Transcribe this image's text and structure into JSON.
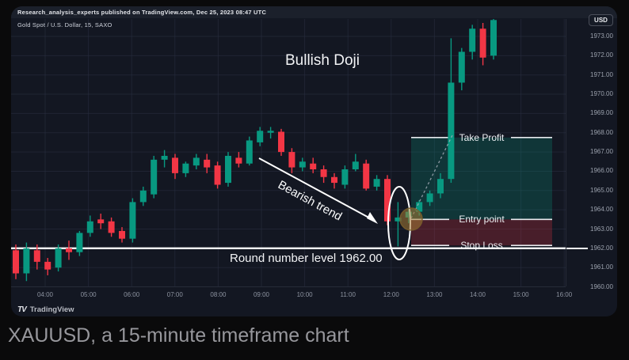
{
  "page": {
    "caption": "XAUUSD, a 15-minute timeframe chart"
  },
  "header": {
    "attribution": "Research_analysis_experts published on TradingView.com, Dec 25, 2023 08:47 UTC",
    "symbol_title": "Gold Spot / U.S. Dollar, 15, SAXO",
    "currency_button": "USD"
  },
  "footer": {
    "logo": "TV",
    "brand": "TradingView"
  },
  "annotations": {
    "bullish_doji": "Bullish Doji",
    "bearish_trend": "Bearish trend",
    "round_number": "Round number level 1962.00",
    "take_profit": "Take Profit",
    "entry_point": "Entry point",
    "stop_loss": "Stop Loss"
  },
  "colors": {
    "up_candle": "#089981",
    "down_candle": "#f23645",
    "tp_zone_fill": "rgba(8,153,129,0.24)",
    "sl_zone_fill": "rgba(242,54,69,0.24)",
    "zone_line": "#e8eaee",
    "round_line": "#ffffff",
    "grid": "rgba(42,48,66,0.55)",
    "chart_bg": "#131722",
    "arrow": "#ffffff",
    "dashed_projection": "rgba(170,176,188,0.8)",
    "entry_marker_fill": "rgba(168,124,52,0.55)",
    "entry_marker_stroke": "rgba(120,92,42,0.9)"
  },
  "chart_data": {
    "type": "candlestick",
    "symbol": "XAUUSD",
    "timeframe_minutes": 15,
    "title": "Gold Spot / U.S. Dollar, 15, SAXO",
    "price_axis_ticks": [
      "1973.00",
      "1972.00",
      "1971.00",
      "1970.00",
      "1969.00",
      "1968.00",
      "1967.00",
      "1966.00",
      "1965.00",
      "1964.00",
      "1963.00",
      "1962.00",
      "1961.00",
      "1960.00"
    ],
    "time_axis_ticks": [
      "04:00",
      "05:00",
      "06:00",
      "07:00",
      "08:00",
      "09:00",
      "10:00",
      "11:00",
      "12:00",
      "13:00",
      "14:00",
      "15:00",
      "16:00"
    ],
    "ylim": [
      1960.0,
      1973.9
    ],
    "grid": true,
    "round_number_level": 1962.0,
    "position_tool": {
      "entry": 1963.5,
      "take_profit": 1967.75,
      "stop_loss": 1962.15
    },
    "bullish_doji_index": 36,
    "candles_ohlc": [
      [
        1961.9,
        1962.2,
        1960.4,
        1960.7
      ],
      [
        1960.7,
        1962.3,
        1960.3,
        1962.0
      ],
      [
        1961.9,
        1962.2,
        1960.9,
        1961.3
      ],
      [
        1961.3,
        1961.5,
        1960.6,
        1960.9
      ],
      [
        1961.0,
        1962.2,
        1960.8,
        1962.0
      ],
      [
        1962.0,
        1962.4,
        1961.4,
        1961.8
      ],
      [
        1961.8,
        1962.9,
        1961.6,
        1962.8
      ],
      [
        1962.8,
        1963.7,
        1962.6,
        1963.4
      ],
      [
        1963.5,
        1963.8,
        1963.0,
        1963.3
      ],
      [
        1963.4,
        1963.6,
        1962.6,
        1962.8
      ],
      [
        1962.9,
        1963.1,
        1962.3,
        1962.5
      ],
      [
        1962.5,
        1964.6,
        1962.3,
        1964.4
      ],
      [
        1964.4,
        1965.2,
        1964.2,
        1965.0
      ],
      [
        1964.8,
        1966.8,
        1964.6,
        1966.6
      ],
      [
        1966.6,
        1967.1,
        1966.2,
        1966.8
      ],
      [
        1966.7,
        1966.9,
        1965.6,
        1965.9
      ],
      [
        1965.9,
        1966.5,
        1965.7,
        1966.4
      ],
      [
        1966.3,
        1966.9,
        1966.1,
        1966.7
      ],
      [
        1966.6,
        1966.9,
        1965.9,
        1966.2
      ],
      [
        1966.3,
        1966.5,
        1965.1,
        1965.3
      ],
      [
        1965.4,
        1967.0,
        1965.2,
        1966.8
      ],
      [
        1966.7,
        1967.0,
        1966.2,
        1966.4
      ],
      [
        1966.4,
        1967.8,
        1966.3,
        1967.6
      ],
      [
        1967.5,
        1968.3,
        1967.3,
        1968.1
      ],
      [
        1968.0,
        1968.3,
        1967.7,
        1968.1
      ],
      [
        1968.05,
        1968.2,
        1966.8,
        1967.0
      ],
      [
        1967.0,
        1967.2,
        1965.9,
        1966.2
      ],
      [
        1966.2,
        1966.7,
        1966.0,
        1966.5
      ],
      [
        1966.4,
        1966.7,
        1965.9,
        1966.1
      ],
      [
        1966.1,
        1966.3,
        1965.4,
        1965.7
      ],
      [
        1965.7,
        1965.9,
        1965.1,
        1965.4
      ],
      [
        1965.3,
        1966.3,
        1965.1,
        1966.1
      ],
      [
        1966.1,
        1966.9,
        1966.0,
        1966.5
      ],
      [
        1966.4,
        1966.6,
        1965.0,
        1965.1
      ],
      [
        1965.2,
        1965.8,
        1965.0,
        1965.6
      ],
      [
        1965.6,
        1965.8,
        1963.2,
        1963.4
      ],
      [
        1963.4,
        1964.4,
        1962.1,
        1963.6
      ],
      [
        1963.6,
        1964.1,
        1963.3,
        1963.9
      ],
      [
        1963.9,
        1964.5,
        1963.7,
        1964.4
      ],
      [
        1964.4,
        1965.0,
        1964.2,
        1964.85
      ],
      [
        1964.85,
        1965.9,
        1964.6,
        1965.6
      ],
      [
        1965.6,
        1972.9,
        1965.4,
        1970.6
      ],
      [
        1970.6,
        1972.4,
        1970.2,
        1972.2
      ],
      [
        1972.2,
        1973.6,
        1971.8,
        1973.4
      ],
      [
        1973.4,
        1973.7,
        1971.5,
        1971.9
      ],
      [
        1972.0,
        1974.0,
        1971.8,
        1973.85
      ]
    ]
  }
}
